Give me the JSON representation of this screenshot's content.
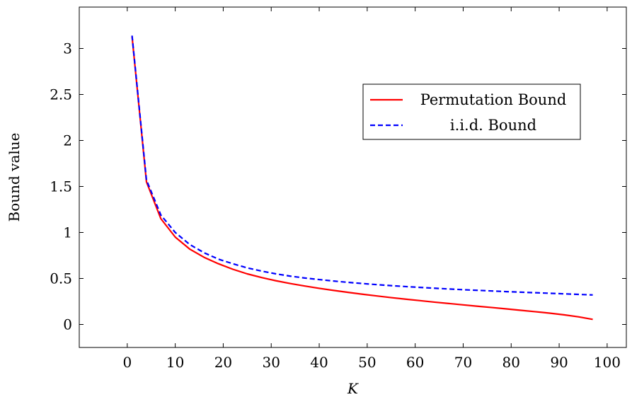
{
  "chart_data": {
    "type": "line",
    "xlabel": "K",
    "ylabel": "Bound value",
    "xlim": [
      -10,
      104
    ],
    "ylim": [
      -0.25,
      3.45
    ],
    "xticks": [
      0,
      10,
      20,
      30,
      40,
      50,
      60,
      70,
      80,
      90,
      100
    ],
    "yticks": [
      0,
      0.5,
      1,
      1.5,
      2,
      2.5,
      3
    ],
    "xtick_labels": [
      "0",
      "10",
      "20",
      "30",
      "40",
      "50",
      "60",
      "70",
      "80",
      "90",
      "100"
    ],
    "ytick_labels": [
      "0",
      "0.5",
      "1",
      "1.5",
      "2",
      "2.5",
      "3"
    ],
    "grid": false,
    "legend_position": "upper-right",
    "series": [
      {
        "name": "Permutation Bound",
        "color": "#ff0000",
        "style": "solid",
        "x": [
          1,
          4,
          7,
          10,
          13,
          16,
          19,
          22,
          25,
          28,
          31,
          34,
          37,
          40,
          43,
          46,
          49,
          52,
          55,
          58,
          61,
          64,
          67,
          70,
          73,
          76,
          79,
          82,
          85,
          88,
          91,
          94,
          97
        ],
        "y": [
          3.13,
          1.55,
          1.15,
          0.95,
          0.82,
          0.73,
          0.66,
          0.6,
          0.55,
          0.51,
          0.475,
          0.445,
          0.418,
          0.393,
          0.37,
          0.349,
          0.329,
          0.31,
          0.292,
          0.275,
          0.259,
          0.243,
          0.228,
          0.213,
          0.198,
          0.184,
          0.169,
          0.154,
          0.139,
          0.123,
          0.105,
          0.083,
          0.055
        ]
      },
      {
        "name": "i.i.d. Bound",
        "color": "#0000ff",
        "style": "dashed",
        "x": [
          1,
          4,
          7,
          10,
          13,
          16,
          19,
          22,
          25,
          28,
          31,
          34,
          37,
          40,
          43,
          46,
          49,
          52,
          55,
          58,
          61,
          64,
          67,
          70,
          73,
          76,
          79,
          82,
          85,
          88,
          91,
          94,
          97
        ],
        "y": [
          3.14,
          1.57,
          1.19,
          1.0,
          0.87,
          0.78,
          0.71,
          0.66,
          0.615,
          0.58,
          0.55,
          0.525,
          0.505,
          0.488,
          0.472,
          0.458,
          0.445,
          0.433,
          0.422,
          0.412,
          0.403,
          0.394,
          0.386,
          0.378,
          0.371,
          0.364,
          0.357,
          0.351,
          0.345,
          0.339,
          0.333,
          0.327,
          0.321
        ]
      }
    ]
  }
}
